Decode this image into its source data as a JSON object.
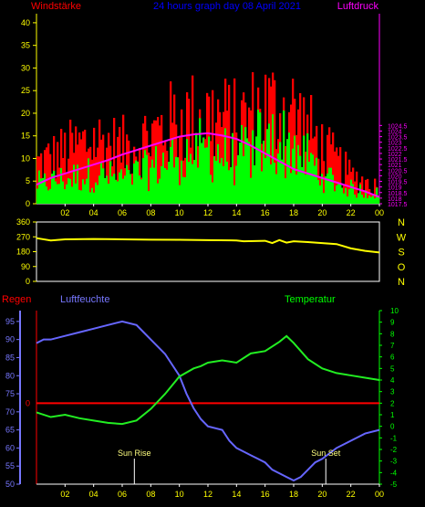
{
  "header": {
    "left_title": "Windstärke",
    "center_title": "24 hours graph day 08 April 2021",
    "right_title": "Luftdruck"
  },
  "labels": {
    "regen": "Regen",
    "luftfeuchte": "Luftfeuchte",
    "temperatur": "Temperatur",
    "sun_rise": "Sun Rise",
    "sun_set": "Sun Set"
  },
  "colors": {
    "wind_gust": "#ff0000",
    "wind_avg": "#00ff00",
    "pressure": "#ff00ff",
    "direction": "#ffff00",
    "humidity": "#6666ff",
    "temperature": "#22ee22",
    "rain": "#ff0000",
    "axis_left": "#ffff00",
    "axis_wind_dir": "#ffff00",
    "axis_hum": "#7777ff",
    "axis_temp": "#00ff00",
    "axis_pressure": "#ff00ff"
  },
  "chart_data": [
    {
      "type": "bar",
      "name": "wind-pressure",
      "x_ticks": [
        "02",
        "04",
        "06",
        "08",
        "10",
        "12",
        "14",
        "16",
        "18",
        "20",
        "22",
        "00"
      ],
      "wind_ylim": [
        0,
        42
      ],
      "wind_yticks": [
        "0",
        "5",
        "10",
        "15",
        "20",
        "25",
        "30",
        "35",
        "40"
      ],
      "pressure_ylim": [
        1017.5,
        1034.5
      ],
      "pressure_yticks": [
        "1017.5",
        "1018",
        "1018.5",
        "1019",
        "1019.5",
        "1020",
        "1020.5",
        "1021",
        "1021.5",
        "1022",
        "1022.5",
        "1023",
        "1023.5",
        "1024",
        "1024.5"
      ],
      "wind_gust_profile": {
        "hours": [
          0,
          2,
          4,
          6,
          8,
          10,
          12,
          14,
          16,
          18,
          20,
          22,
          24
        ],
        "values": [
          10,
          13,
          16,
          14,
          17,
          21,
          22,
          20,
          24,
          23,
          14,
          7,
          4
        ]
      },
      "wind_avg_profile": {
        "hours": [
          0,
          2,
          4,
          6,
          8,
          10,
          12,
          14,
          16,
          18,
          20,
          22,
          24
        ],
        "values": [
          4,
          5,
          6,
          5,
          7,
          10,
          11,
          9,
          13,
          12,
          6,
          3,
          2
        ]
      },
      "pressure_series": {
        "hours": [
          0,
          1,
          2,
          3,
          4,
          5,
          6,
          7,
          8,
          9,
          10,
          11,
          12,
          13,
          14,
          15,
          16,
          17,
          18,
          19,
          20,
          21,
          22,
          23,
          24
        ],
        "values": [
          1019.2,
          1019.8,
          1020.2,
          1020.6,
          1021.0,
          1021.4,
          1021.9,
          1022.3,
          1022.7,
          1023.1,
          1023.5,
          1023.7,
          1023.8,
          1023.6,
          1023.3,
          1022.7,
          1022.0,
          1021.3,
          1020.6,
          1020.2,
          1019.8,
          1019.4,
          1019.0,
          1018.6,
          1018.1
        ]
      }
    },
    {
      "type": "line",
      "name": "wind-direction",
      "ylim": [
        0,
        360
      ],
      "yticks": [
        "0",
        "90",
        "180",
        "270",
        "360"
      ],
      "compass": [
        "N",
        "W",
        "S",
        "O",
        "N"
      ],
      "series": {
        "hours": [
          0,
          1,
          2,
          4,
          6,
          8,
          10,
          12,
          14,
          14.5,
          16,
          16.5,
          17,
          17.5,
          18,
          19,
          20,
          21,
          22,
          23,
          24
        ],
        "values": [
          262,
          248,
          255,
          257,
          255,
          253,
          252,
          250,
          248,
          243,
          246,
          232,
          250,
          235,
          243,
          238,
          232,
          226,
          200,
          185,
          175
        ]
      }
    },
    {
      "type": "line",
      "name": "humidity-temperature",
      "x_ticks": [
        "02",
        "04",
        "06",
        "08",
        "10",
        "12",
        "14",
        "16",
        "18",
        "20",
        "22",
        "00"
      ],
      "hum_ylim": [
        50,
        98
      ],
      "hum_yticks": [
        "50",
        "55",
        "60",
        "65",
        "70",
        "75",
        "80",
        "85",
        "90",
        "95"
      ],
      "temp_ylim": [
        -5,
        10
      ],
      "temp_yticks": [
        "-5",
        "-4",
        "-3",
        "-2",
        "-1",
        "0",
        "1",
        "2",
        "3",
        "4",
        "5",
        "6",
        "7",
        "8",
        "9",
        "10"
      ],
      "rain_ylim": [
        0,
        1
      ],
      "rain_yticks": [
        "0"
      ],
      "rain_level": 0,
      "humidity": {
        "hours": [
          0,
          0.5,
          1,
          2,
          3,
          4,
          5,
          6,
          7,
          7.5,
          8,
          9,
          10,
          10.5,
          11,
          11.5,
          12,
          13,
          13.5,
          14,
          14.5,
          15,
          15.5,
          16,
          16.5,
          17,
          17.5,
          18,
          18.5,
          19,
          19.5,
          20,
          21,
          22,
          23,
          24
        ],
        "values": [
          89,
          90,
          90,
          91,
          92,
          93,
          94,
          95,
          94,
          92,
          90,
          86,
          80,
          75,
          71,
          68,
          66,
          65,
          62,
          60,
          59,
          58,
          57,
          56,
          54,
          53,
          52,
          51,
          52,
          54,
          56,
          57,
          60,
          62,
          64,
          65
        ]
      },
      "temperature": {
        "hours": [
          0,
          1,
          2,
          3,
          4,
          5,
          6,
          7,
          8,
          9,
          10,
          11,
          11.5,
          12,
          13,
          14,
          15,
          16,
          17,
          17.5,
          18,
          18.5,
          19,
          20,
          21,
          22,
          23,
          24
        ],
        "values": [
          1.2,
          0.8,
          1.0,
          0.7,
          0.5,
          0.3,
          0.2,
          0.5,
          1.5,
          2.8,
          4.3,
          5.0,
          5.2,
          5.5,
          5.7,
          5.5,
          6.3,
          6.5,
          7.3,
          7.8,
          7.2,
          6.5,
          5.8,
          5.0,
          4.6,
          4.4,
          4.2,
          4.0
        ]
      },
      "sun_rise_hour": 6.85,
      "sun_set_hour": 20.25
    }
  ]
}
